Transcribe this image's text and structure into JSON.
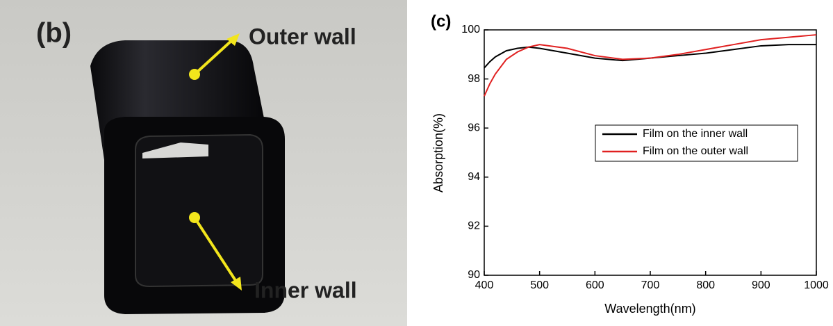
{
  "photo": {
    "label": "(b)",
    "annotations": [
      "Outer wall",
      "Inner wall"
    ]
  },
  "chart_data": {
    "type": "line",
    "panel_label": "(c)",
    "xlabel": "Wavelength(nm)",
    "ylabel": "Absorption(%)",
    "x": [
      400,
      410,
      420,
      440,
      460,
      480,
      500,
      550,
      600,
      650,
      700,
      750,
      800,
      850,
      900,
      950,
      1000
    ],
    "series": [
      {
        "name": "Film on the inner wall",
        "color": "#000000",
        "values": [
          98.45,
          98.7,
          98.9,
          99.15,
          99.25,
          99.3,
          99.25,
          99.05,
          98.85,
          98.75,
          98.85,
          98.95,
          99.05,
          99.2,
          99.35,
          99.4,
          99.4
        ]
      },
      {
        "name": "Film on the outer wall",
        "color": "#e02020",
        "values": [
          97.3,
          97.8,
          98.2,
          98.8,
          99.1,
          99.3,
          99.4,
          99.25,
          98.95,
          98.8,
          98.85,
          99.0,
          99.2,
          99.4,
          99.6,
          99.7,
          99.8
        ]
      }
    ],
    "xlim": [
      400,
      1000
    ],
    "xticks": [
      400,
      500,
      600,
      700,
      800,
      900,
      1000
    ],
    "ylim": [
      90,
      100
    ],
    "yticks": [
      90,
      92,
      94,
      96,
      98,
      100
    ],
    "legend": "center right"
  }
}
